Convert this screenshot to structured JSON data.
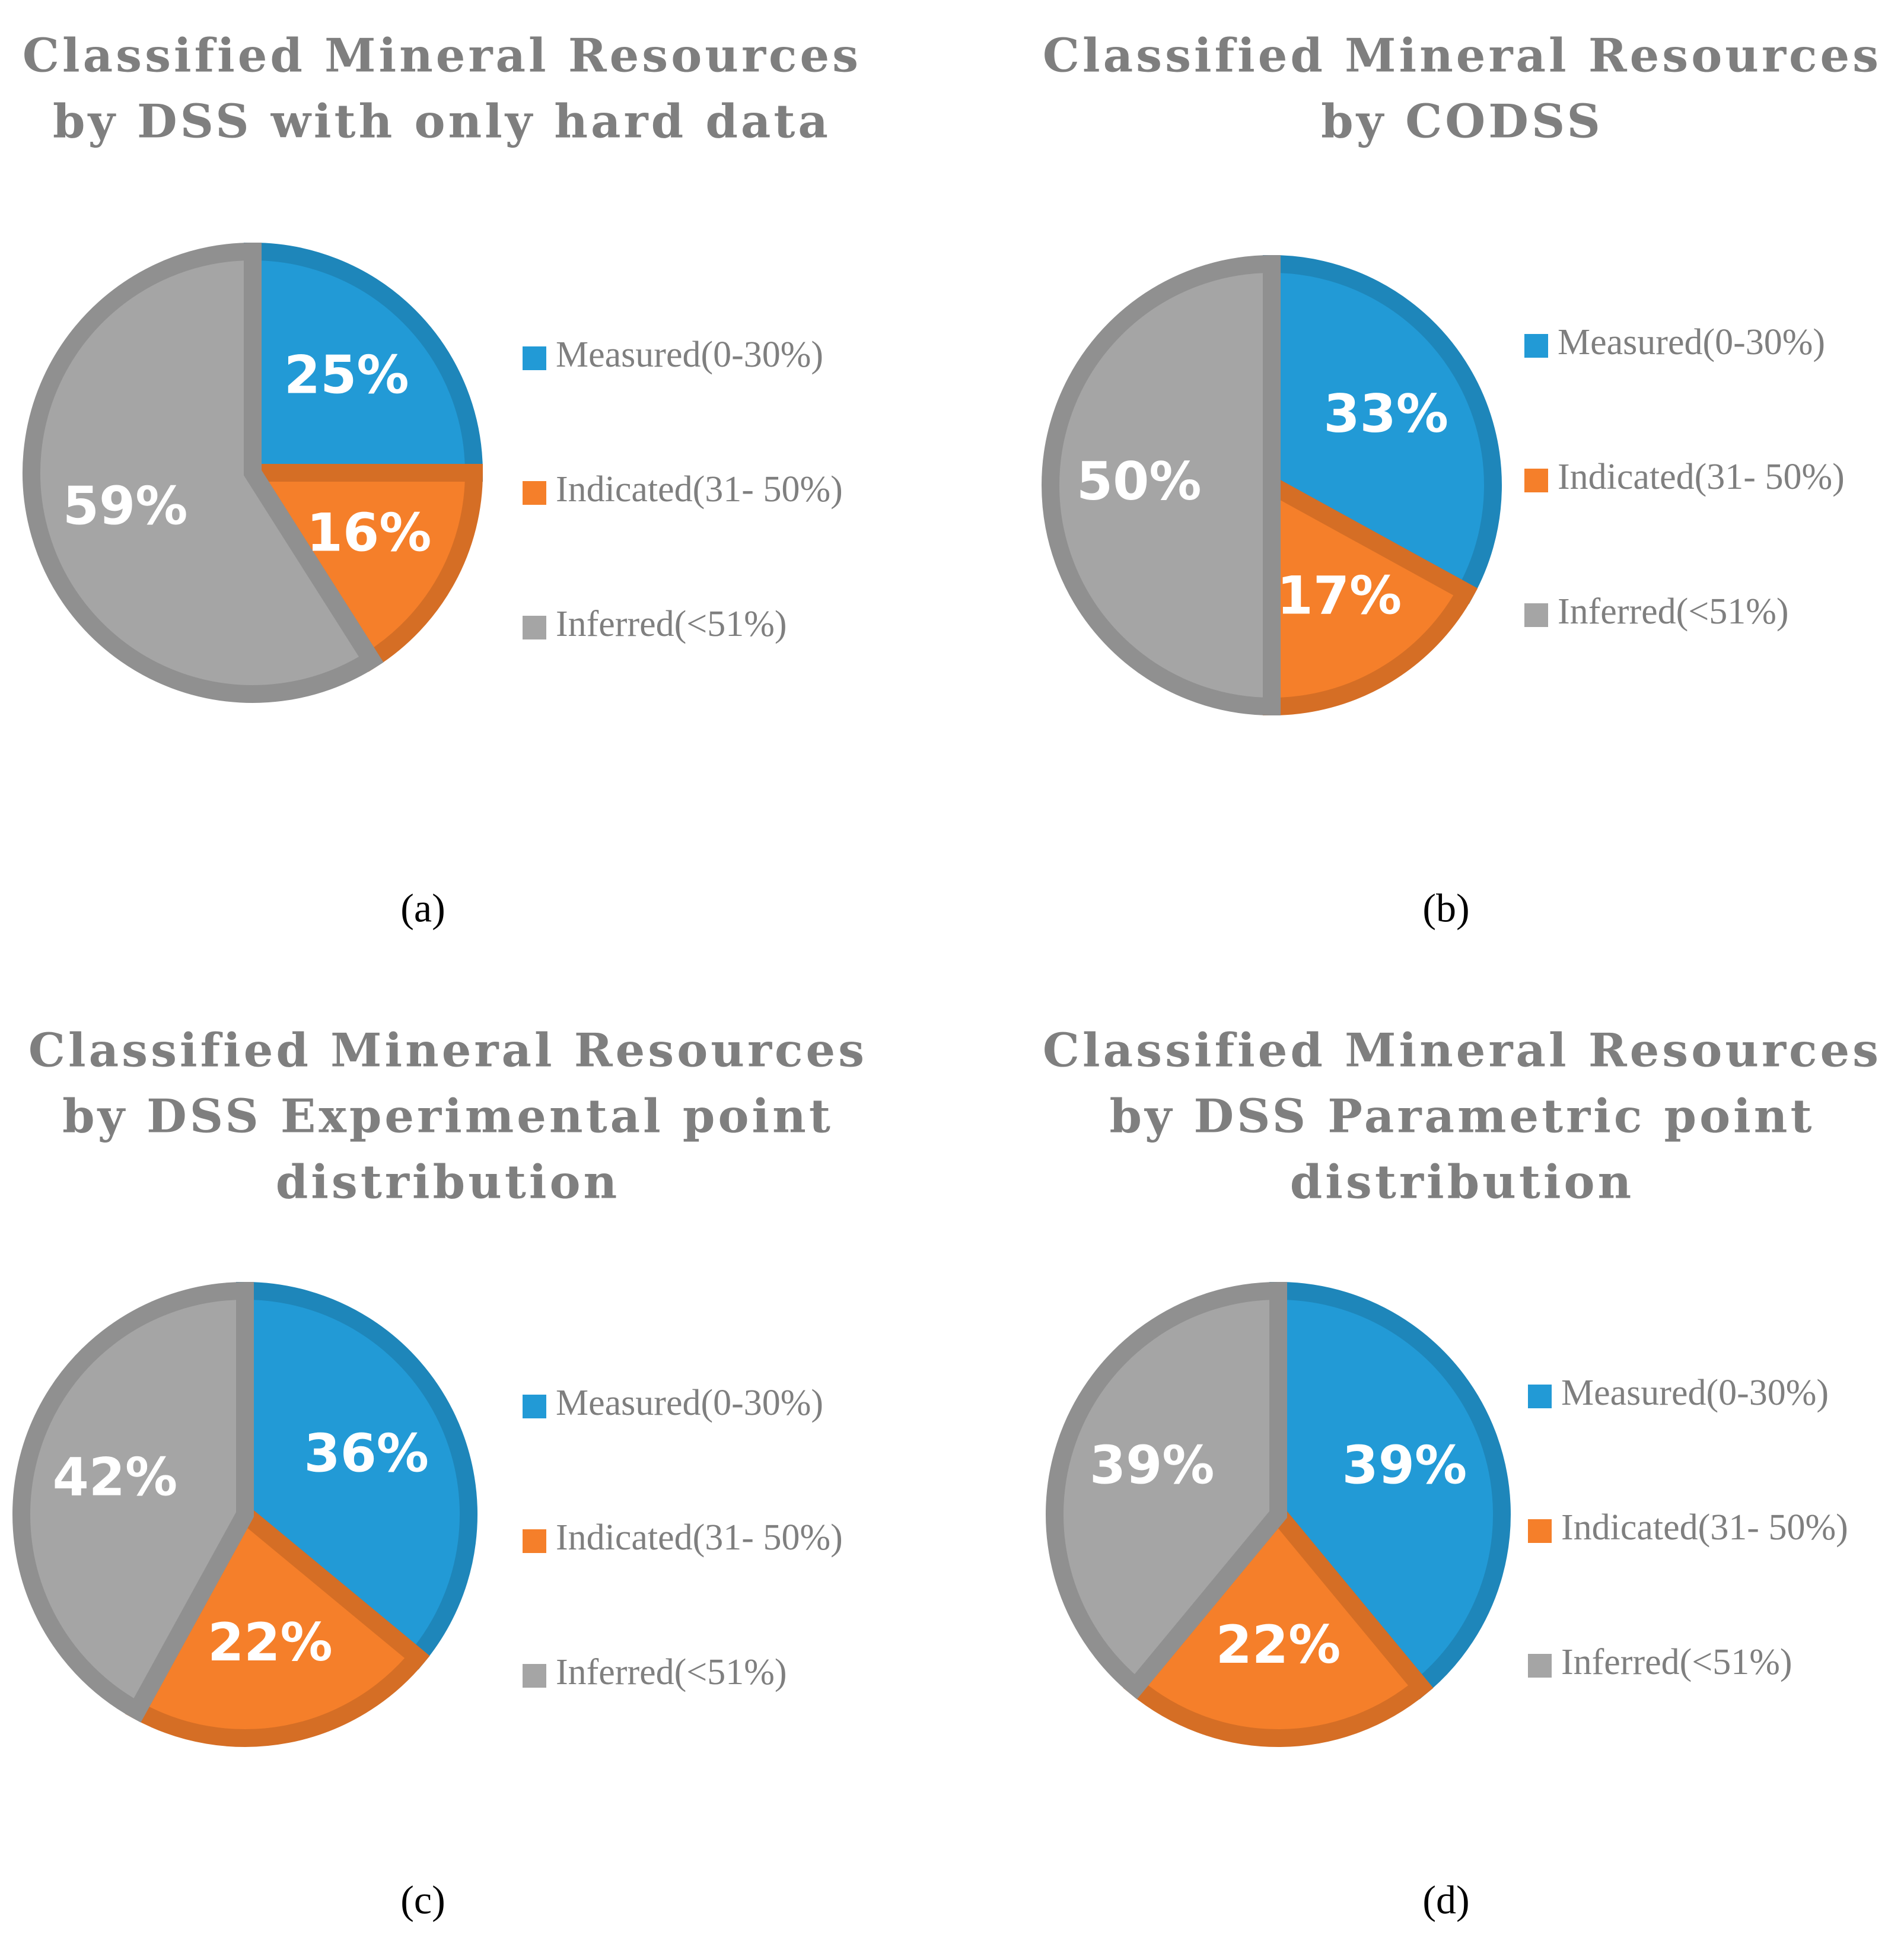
{
  "chart_data": [
    {
      "type": "pie",
      "title": [
        "Classified Mineral Resources",
        "by DSS with only hard data"
      ],
      "categories": [
        "Measured(0-30%)",
        "Indicated(31- 50%)",
        "Inferred(<51%)"
      ],
      "values": [
        25,
        16,
        59
      ],
      "value_labels": [
        "25%",
        "16%",
        "59%"
      ],
      "colors": [
        "#229ad6",
        "#f57f2a",
        "#a5a5a5"
      ],
      "caption": "(a)"
    },
    {
      "type": "pie",
      "title": [
        "Classified Mineral Resources",
        "by CODSS"
      ],
      "categories": [
        "Measured(0-30%)",
        "Indicated(31- 50%)",
        "Inferred(<51%)"
      ],
      "values": [
        33,
        17,
        50
      ],
      "value_labels": [
        "33%",
        "17%",
        "50%"
      ],
      "colors": [
        "#229ad6",
        "#f57f2a",
        "#a5a5a5"
      ],
      "caption": "(b)"
    },
    {
      "type": "pie",
      "title": [
        "Classified Mineral Resources",
        "by DSS Experimental point",
        "distribution"
      ],
      "categories": [
        "Measured(0-30%)",
        "Indicated(31- 50%)",
        "Inferred(<51%)"
      ],
      "values": [
        36,
        22,
        42
      ],
      "value_labels": [
        "36%",
        "22%",
        "42%"
      ],
      "colors": [
        "#229ad6",
        "#f57f2a",
        "#a5a5a5"
      ],
      "caption": "(c)"
    },
    {
      "type": "pie",
      "title": [
        "Classified Mineral Resources",
        "by DSS Parametric point",
        "distribution"
      ],
      "categories": [
        "Measured(0-30%)",
        "Indicated(31- 50%)",
        "Inferred(<51%)"
      ],
      "values": [
        39,
        22,
        39
      ],
      "value_labels": [
        "39%",
        "22%",
        "39%"
      ],
      "colors": [
        "#229ad6",
        "#f57f2a",
        "#a5a5a5"
      ],
      "caption": "(d)"
    }
  ]
}
